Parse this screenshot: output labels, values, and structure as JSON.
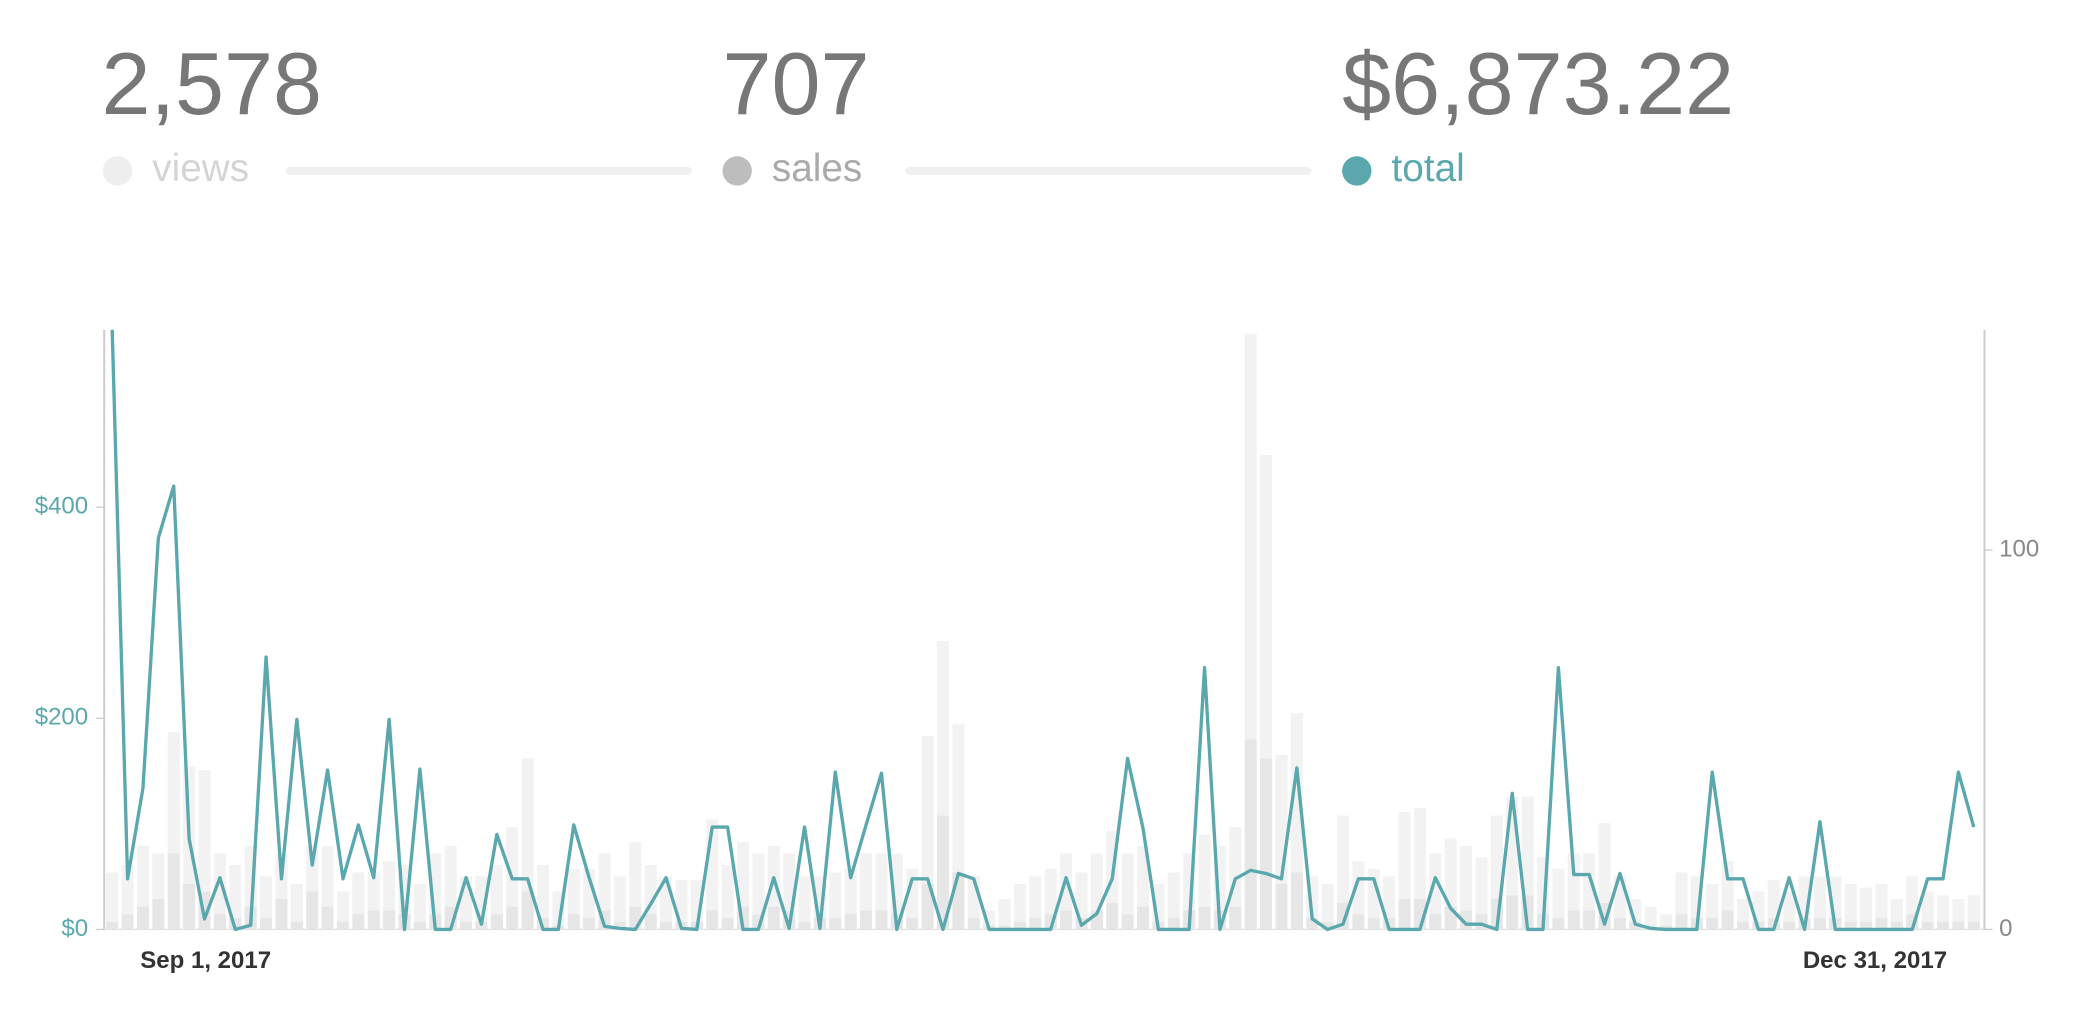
{
  "stats": [
    {
      "value": "2,578",
      "label": "views"
    },
    {
      "value": "707",
      "label": "sales"
    },
    {
      "value": "$6,873.22",
      "label": "total"
    }
  ],
  "chart_data": {
    "type": "combo",
    "categories": [
      "Sep 1, 2017",
      null,
      null,
      null,
      null,
      null,
      null,
      null,
      null,
      null,
      null,
      null,
      null,
      null,
      null,
      null,
      null,
      null,
      null,
      null,
      null,
      null,
      null,
      null,
      null,
      null,
      null,
      null,
      null,
      null,
      null,
      null,
      null,
      null,
      null,
      null,
      null,
      null,
      null,
      null,
      null,
      null,
      null,
      null,
      null,
      null,
      null,
      null,
      null,
      null,
      null,
      null,
      null,
      null,
      null,
      null,
      null,
      null,
      null,
      null,
      null,
      null,
      null,
      null,
      null,
      null,
      null,
      null,
      null,
      null,
      null,
      null,
      null,
      null,
      null,
      null,
      null,
      null,
      null,
      null,
      null,
      null,
      null,
      null,
      null,
      null,
      null,
      null,
      null,
      null,
      null,
      null,
      null,
      null,
      null,
      null,
      null,
      null,
      null,
      null,
      null,
      null,
      null,
      null,
      null,
      null,
      null,
      null,
      null,
      null,
      null,
      null,
      null,
      null,
      null,
      null,
      null,
      null,
      null,
      null,
      null,
      "Dec 31, 2017"
    ],
    "series": [
      {
        "name": "views",
        "color": "#f2f2f2",
        "axis": "y2",
        "kind": "bar",
        "values": [
          15,
          17,
          22,
          20,
          52,
          43,
          42,
          20,
          17,
          22,
          14,
          20,
          12,
          22,
          22,
          10,
          15,
          15,
          18,
          17,
          12,
          20,
          22,
          14,
          14,
          17,
          27,
          45,
          17,
          10,
          16,
          16,
          20,
          14,
          23,
          17,
          14,
          13,
          13,
          29,
          17,
          23,
          20,
          22,
          20,
          14,
          14,
          15,
          16,
          20,
          20,
          20,
          16,
          51,
          76,
          54,
          14,
          5,
          8,
          12,
          14,
          16,
          20,
          15,
          20,
          26,
          20,
          22,
          12,
          15,
          20,
          25,
          22,
          27,
          157,
          125,
          46,
          57,
          14,
          12,
          30,
          18,
          16,
          14,
          31,
          32,
          20,
          24,
          22,
          19,
          30,
          35,
          35,
          19,
          16,
          20,
          20,
          28,
          14,
          8,
          6,
          4,
          15,
          14,
          12,
          18,
          8,
          10,
          13,
          10,
          14,
          14,
          14,
          12,
          11,
          12,
          8,
          14,
          10,
          9,
          8,
          9
        ]
      },
      {
        "name": "sales",
        "color": "#e6e6e6",
        "axis": "y2",
        "kind": "bar",
        "values": [
          2,
          4,
          6,
          8,
          20,
          12,
          10,
          4,
          3,
          6,
          3,
          8,
          2,
          10,
          6,
          2,
          4,
          5,
          5,
          4,
          2,
          4,
          6,
          2,
          2,
          4,
          6,
          10,
          3,
          1,
          4,
          3,
          5,
          2,
          6,
          4,
          2,
          2,
          2,
          5,
          3,
          6,
          4,
          6,
          5,
          2,
          3,
          3,
          4,
          5,
          5,
          4,
          3,
          12,
          30,
          15,
          3,
          1,
          1,
          2,
          3,
          4,
          5,
          3,
          5,
          7,
          4,
          6,
          2,
          3,
          5,
          6,
          5,
          6,
          50,
          45,
          12,
          15,
          3,
          2,
          7,
          4,
          3,
          3,
          8,
          8,
          4,
          6,
          5,
          4,
          8,
          9,
          9,
          4,
          3,
          5,
          5,
          7,
          3,
          2,
          1,
          1,
          4,
          3,
          3,
          5,
          2,
          2,
          3,
          2,
          3,
          3,
          3,
          2,
          2,
          3,
          2,
          4,
          2,
          2,
          2,
          2
        ]
      },
      {
        "name": "total",
        "color": "#5aa8ad",
        "kind": "line",
        "values": [
          568,
          48,
          134,
          371,
          420,
          86,
          10,
          49,
          0,
          4,
          258,
          48,
          199,
          61,
          151,
          48,
          99,
          49,
          199,
          0,
          152,
          0,
          0,
          49,
          5,
          90,
          48,
          48,
          0,
          0,
          99,
          49,
          3,
          1,
          0,
          24,
          49,
          1,
          0,
          97,
          97,
          0,
          0,
          49,
          1,
          97,
          1,
          149,
          49,
          99,
          148,
          0,
          48,
          48,
          0,
          53,
          48,
          0,
          0,
          0,
          0,
          0,
          49,
          4,
          15,
          48,
          162,
          96,
          0,
          0,
          0,
          248,
          0,
          48,
          56,
          53,
          48,
          153,
          10,
          0,
          5,
          48,
          48,
          0,
          0,
          0,
          49,
          20,
          5,
          5,
          0,
          129,
          0,
          0,
          248,
          52,
          52,
          5,
          53,
          5,
          1,
          0,
          0,
          0,
          149,
          48,
          48,
          0,
          0,
          49,
          0,
          102,
          0,
          0,
          0,
          0,
          0,
          0,
          48,
          48,
          149,
          97
        ]
      }
    ],
    "ylim": [
      0,
      568
    ],
    "yticks": [
      {
        "value": 0,
        "label": "$0"
      },
      {
        "value": 200,
        "label": "$200"
      },
      {
        "value": 400,
        "label": "$400"
      }
    ],
    "y2lim": [
      0,
      158
    ],
    "y2ticks": [
      0,
      100
    ]
  }
}
